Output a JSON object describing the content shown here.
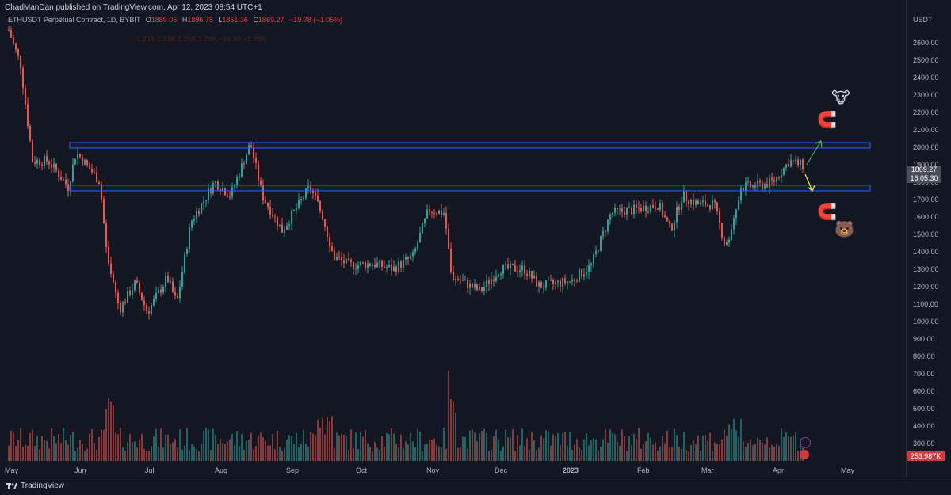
{
  "header": {
    "published": "ChadManDan published on TradingView.com, Apr 12, 2023 08:54 UTC+1",
    "symbol": "ETHUSDT Perpetual Contract, 1D, BYBIT",
    "open_label": "O",
    "open": "1889.05",
    "high_label": "H",
    "high": "1896.75",
    "low_label": "L",
    "low": "1851.36",
    "close_label": "C",
    "close": "1869.27",
    "change": "−19.78 (−1.05%)",
    "ghost_row": "1.20K   1.23K   1.25K   1.28K   −16.90  −1.05%"
  },
  "axis": {
    "currency": "USDT",
    "y_ticks": [
      "2600.00",
      "2500.00",
      "2400.00",
      "2300.00",
      "2200.00",
      "2100.00",
      "2000.00",
      "1900.00",
      "1800.00",
      "1700.00",
      "1600.00",
      "1500.00",
      "1400.00",
      "1300.00",
      "1200.00",
      "1100.00",
      "1000.00",
      "900.00",
      "800.00",
      "700.00",
      "600.00",
      "500.00",
      "400.00",
      "300.00"
    ],
    "x_ticks": [
      "May",
      "Jun",
      "Jul",
      "Aug",
      "Sep",
      "Oct",
      "Nov",
      "Dec",
      "2023",
      "Feb",
      "Mar",
      "Apr",
      "May"
    ]
  },
  "price_tag": {
    "price": "1869.27",
    "countdown": "16:05:30"
  },
  "volume_tag": "253.987K",
  "footer": {
    "brand": "TradingView"
  },
  "colors": {
    "up": "#26a69a",
    "down": "#ef5350",
    "zone": "#2962ff",
    "bg": "#131722"
  },
  "annotations": {
    "icons": [
      "cow-emoji",
      "magnet-emoji",
      "bear-emoji"
    ],
    "zone_upper": "2000-2030",
    "zone_lower": "1760-1790"
  }
}
